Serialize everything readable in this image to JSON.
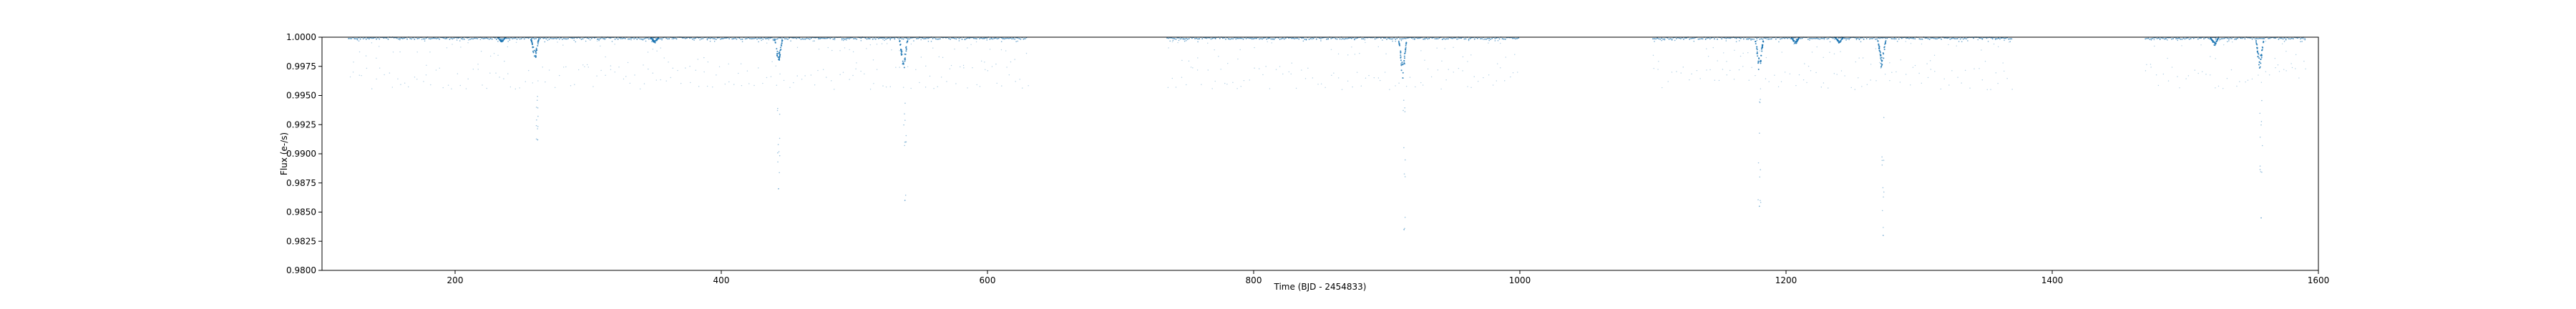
{
  "chart_data": {
    "type": "scatter",
    "title": "",
    "xlabel": "Time (BJD - 2454833)",
    "ylabel": "Flux (e-/s)",
    "xlim": [
      100,
      1600
    ],
    "ylim": [
      0.98,
      1.0
    ],
    "xticks": [
      200,
      400,
      600,
      800,
      1000,
      1200,
      1400,
      1600
    ],
    "xtick_labels": [
      "200",
      "400",
      "600",
      "800",
      "1000",
      "1200",
      "1400",
      "1600"
    ],
    "yticks": [
      0.98,
      0.9825,
      0.985,
      0.9875,
      0.99,
      0.9925,
      0.995,
      0.9975,
      1.0
    ],
    "ytick_labels": [
      "0.9800",
      "0.9825",
      "0.9850",
      "0.9875",
      "0.9900",
      "0.9925",
      "0.9950",
      "0.9975",
      "1.0000"
    ],
    "grid": false,
    "marker_color": "#1f77b4",
    "series": [
      {
        "segments": [
          [
            120,
            630
          ],
          [
            735,
            1000
          ],
          [
            1100,
            1370
          ],
          [
            1470,
            1590
          ]
        ],
        "transits": [
          {
            "t": 260,
            "depth": 0.0019
          },
          {
            "t": 443,
            "depth": 0.0022
          },
          {
            "t": 537,
            "depth": 0.0029
          },
          {
            "t": 912,
            "depth": 0.0035
          },
          {
            "t": 1180,
            "depth": 0.003
          },
          {
            "t": 1272,
            "depth": 0.0028
          },
          {
            "t": 1556,
            "depth": 0.0028
          },
          {
            "t": 350,
            "depth": 0.0005
          },
          {
            "t": 235,
            "depth": 0.0004
          },
          {
            "t": 1207,
            "depth": 0.0006
          },
          {
            "t": 1240,
            "depth": 0.0005
          },
          {
            "t": 1522,
            "depth": 0.0007
          }
        ],
        "outliers": [
          {
            "t": 262,
            "y": 0.9912
          },
          {
            "t": 443,
            "y": 0.987
          },
          {
            "t": 538,
            "y": 0.986
          },
          {
            "t": 913,
            "y": 0.9835
          },
          {
            "t": 1180,
            "y": 0.9855
          },
          {
            "t": 1273,
            "y": 0.983
          },
          {
            "t": 1557,
            "y": 0.9845
          }
        ],
        "floor_band": [
          0.9955,
          0.9975
        ]
      }
    ]
  }
}
